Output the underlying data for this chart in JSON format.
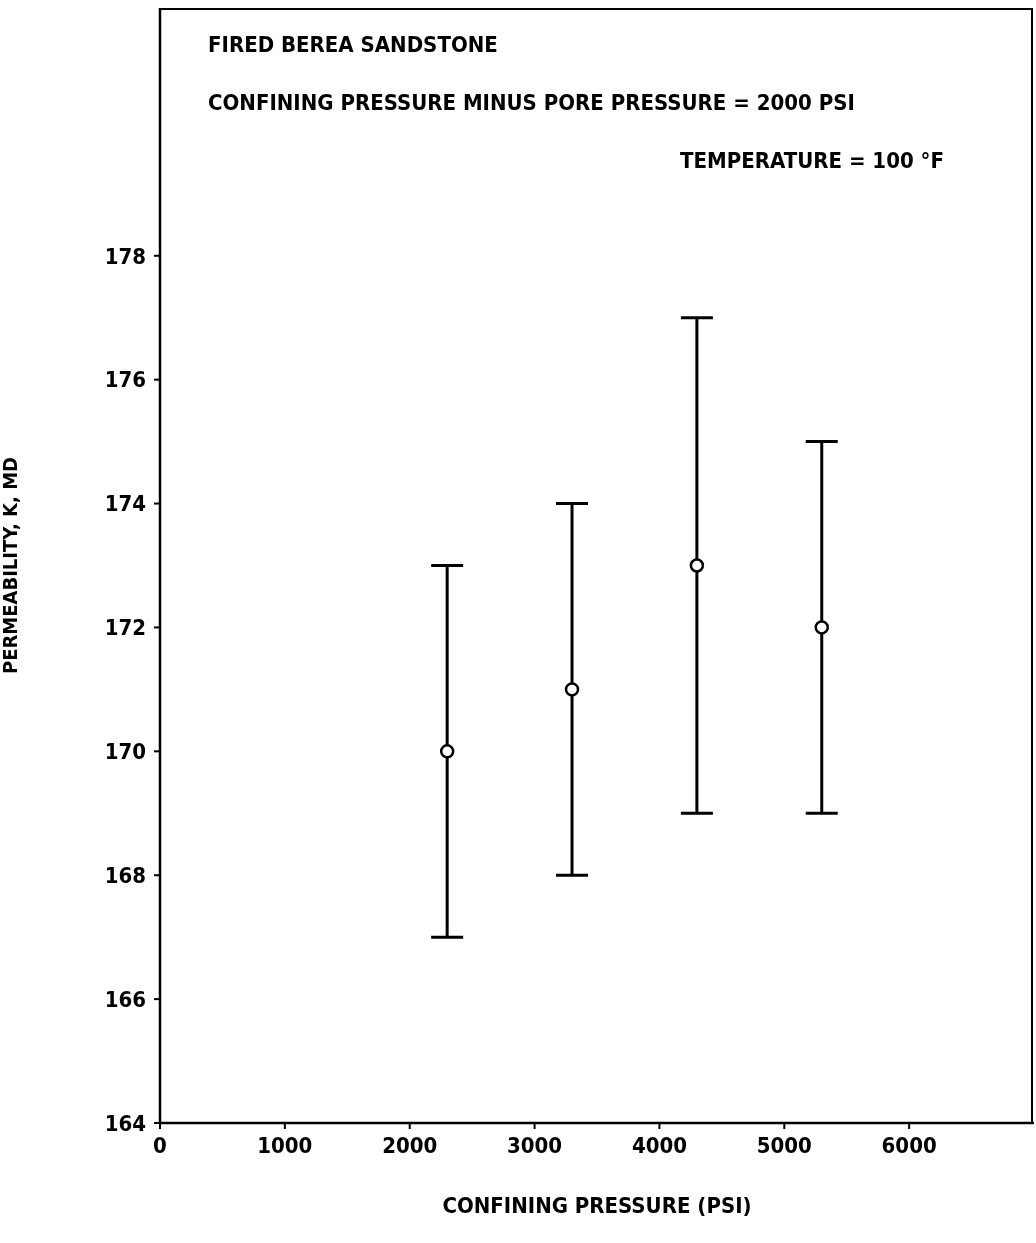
{
  "chart_data": {
    "type": "scatter",
    "xlabel": "CONFINING PRESSURE (PSI)",
    "ylabel": "PERMEABILITY, K, MD",
    "annotations": [
      "FIRED BEREA SANDSTONE",
      "CONFINING PRESSURE MINUS PORE PRESSURE = 2000 PSI",
      "TEMPERATURE =  100 °F"
    ],
    "x": [
      2300,
      3300,
      4300,
      5300
    ],
    "series": [
      {
        "color": "#000000",
        "values": [
          170,
          171,
          173,
          172
        ],
        "errors": [
          3,
          3,
          4,
          3
        ]
      }
    ],
    "xlim": [
      0,
      7000
    ],
    "xticks": [
      0,
      1000,
      2000,
      3000,
      4000,
      5000,
      6000
    ],
    "ylim": [
      164,
      182
    ],
    "yticks": [
      164,
      166,
      168,
      170,
      172,
      174,
      176,
      178
    ],
    "marker": "circle",
    "grid": false,
    "legend": false
  }
}
